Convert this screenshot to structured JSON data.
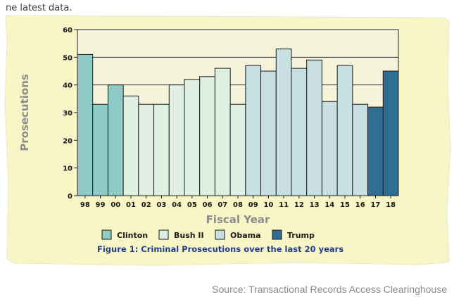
{
  "header_fragment": "ne latest data.",
  "source": "Source: Transactional Records Access Clearinghouse",
  "chart_data": {
    "type": "bar",
    "title": "Figure 1: Criminal Prosecutions over the last 20 years",
    "xlabel": "Fiscal Year",
    "ylabel": "Prosecutions",
    "ylim": [
      0,
      60
    ],
    "yticks": [
      "0",
      "10",
      "20",
      "30",
      "40",
      "50",
      "60"
    ],
    "grid": true,
    "legend_position": "bottom",
    "categories": [
      "98",
      "99",
      "00",
      "01",
      "02",
      "03",
      "04",
      "05",
      "06",
      "07",
      "08",
      "09",
      "10",
      "11",
      "12",
      "13",
      "14",
      "15",
      "16",
      "17",
      "18"
    ],
    "values": [
      51,
      33,
      40,
      36,
      33,
      33,
      40,
      42,
      43,
      46,
      33,
      47,
      45,
      53,
      46,
      49,
      34,
      47,
      33,
      32,
      45
    ],
    "series_by_bar": [
      "Clinton",
      "Clinton",
      "Clinton",
      "Bush II",
      "Bush II",
      "Bush II",
      "Bush II",
      "Bush II",
      "Bush II",
      "Bush II",
      "Bush II",
      "Obama",
      "Obama",
      "Obama",
      "Obama",
      "Obama",
      "Obama",
      "Obama",
      "Obama",
      "Trump",
      "Trump"
    ],
    "legend": [
      {
        "name": "Clinton",
        "color": "#8ecac6"
      },
      {
        "name": "Bush II",
        "color": "#dff0e2"
      },
      {
        "name": "Obama",
        "color": "#c8dfe2"
      },
      {
        "name": "Trump",
        "color": "#2f6e93"
      }
    ]
  },
  "colors": {
    "plot_background": "#f5f3d9",
    "frame_background": "#f8f6c6",
    "axis_label": "#8c8c8c",
    "caption": "#243c8c"
  }
}
